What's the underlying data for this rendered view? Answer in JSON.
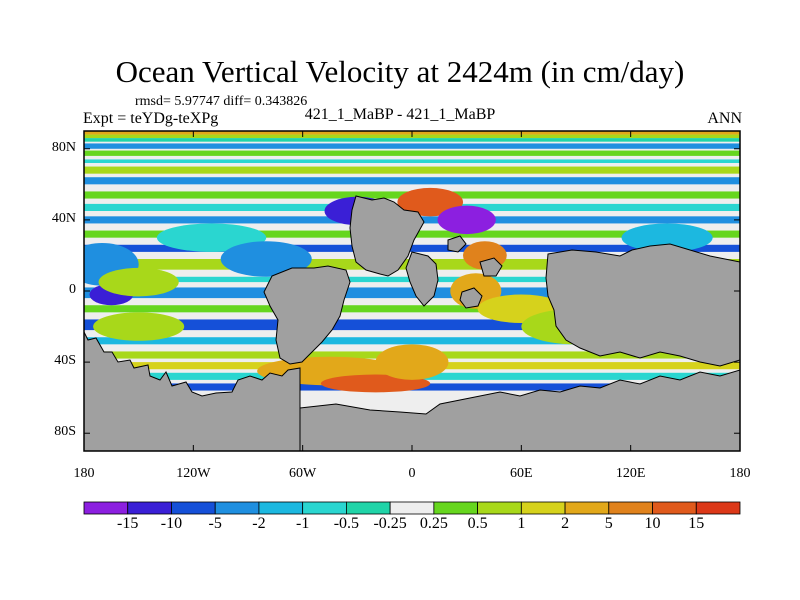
{
  "chart_data": {
    "type": "heatmap",
    "title": "Ocean Vertical Velocity at 2424m (in cm/day)",
    "stats_text": "rmsd= 5.97747 diff= 0.343826",
    "experiment_text": "Expt = teYDg-teXPg",
    "center_label": "421_1_MaBP - 421_1_MaBP",
    "season": "ANN",
    "xlim": [
      -180,
      180
    ],
    "ylim": [
      -90,
      90
    ],
    "x_ticks": [
      {
        "value": -180,
        "label": "180"
      },
      {
        "value": -120,
        "label": "120W"
      },
      {
        "value": -60,
        "label": "60W"
      },
      {
        "value": 0,
        "label": "0"
      },
      {
        "value": 60,
        "label": "60E"
      },
      {
        "value": 120,
        "label": "120E"
      },
      {
        "value": 180,
        "label": "180"
      }
    ],
    "y_ticks": [
      {
        "value": 80,
        "label": "80N"
      },
      {
        "value": 40,
        "label": "40N"
      },
      {
        "value": 0,
        "label": "0"
      },
      {
        "value": -40,
        "label": "40S"
      },
      {
        "value": -80,
        "label": "80S"
      }
    ],
    "colorbar": {
      "levels": [
        "-15",
        "-10",
        "-5",
        "-2",
        "-1",
        "-0.5",
        "-0.25",
        "0.25",
        "0.5",
        "1",
        "2",
        "5",
        "10",
        "15"
      ],
      "colors": [
        "#8c1fe0",
        "#3a1fd6",
        "#1550d8",
        "#1f8fe0",
        "#1cb8e0",
        "#2ad6d0",
        "#20d4a8",
        "#eeeeee",
        "#66d61e",
        "#a8d81a",
        "#d6d21c",
        "#e2a81a",
        "#e0821c",
        "#e05a1c",
        "#dc3818"
      ]
    },
    "land_color": "#a0a0a0"
  }
}
